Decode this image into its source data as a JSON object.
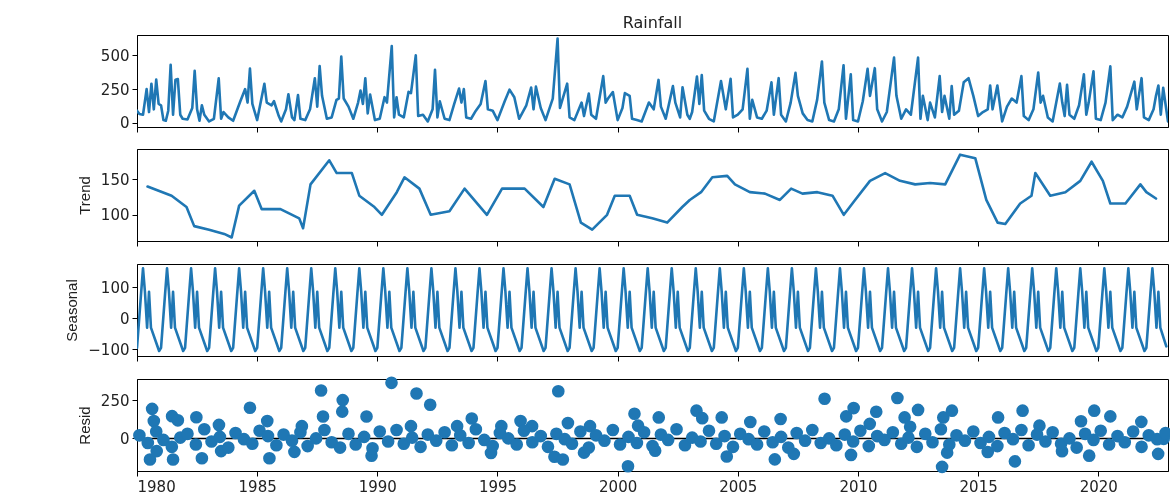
{
  "chart_data": [
    {
      "type": "line",
      "title": "Rainfall",
      "color": "#1f77b4",
      "xlim": [
        1980,
        2022.9
      ],
      "xticks": [
        1980,
        1985,
        1990,
        1995,
        2000,
        2005,
        2010,
        2015,
        2020
      ],
      "ylim": [
        -31,
        651
      ],
      "yticks": [
        0,
        250,
        500
      ],
      "tick_labels": "y",
      "x": [
        1980.0,
        1980.1,
        1980.25,
        1980.4,
        1980.5,
        1980.6,
        1980.7,
        1980.8,
        1980.9,
        1981.0,
        1981.1,
        1981.2,
        1981.3,
        1981.4,
        1981.5,
        1981.6,
        1981.7,
        1981.8,
        1981.9,
        1982.1,
        1982.3,
        1982.4,
        1982.5,
        1982.6,
        1982.7,
        1982.8,
        1983.0,
        1983.2,
        1983.4,
        1983.5,
        1983.6,
        1983.8,
        1984.0,
        1984.3,
        1984.5,
        1984.6,
        1984.7,
        1984.8,
        1985.0,
        1985.3,
        1985.4,
        1985.6,
        1985.7,
        1985.9,
        1986.0,
        1986.2,
        1986.3,
        1986.45,
        1986.55,
        1986.7,
        1986.8,
        1987.0,
        1987.2,
        1987.4,
        1987.5,
        1987.6,
        1987.7,
        1987.9,
        1988.1,
        1988.3,
        1988.4,
        1988.5,
        1988.6,
        1988.8,
        1989.0,
        1989.2,
        1989.3,
        1989.4,
        1989.5,
        1989.6,
        1989.7,
        1989.9,
        1990.1,
        1990.3,
        1990.4,
        1990.6,
        1990.7,
        1990.8,
        1990.9,
        1991.1,
        1991.3,
        1991.4,
        1991.6,
        1991.7,
        1991.9,
        1992.1,
        1992.3,
        1992.4,
        1992.5,
        1992.6,
        1992.8,
        1993.0,
        1993.2,
        1993.4,
        1993.5,
        1993.6,
        1993.7,
        1993.9,
        1994.1,
        1994.3,
        1994.5,
        1994.6,
        1994.8,
        1995.0,
        1995.3,
        1995.5,
        1995.7,
        1995.9,
        1996.2,
        1996.4,
        1996.5,
        1996.6,
        1996.8,
        1997.0,
        1997.3,
        1997.5,
        1997.6,
        1997.9,
        1998.0,
        1998.2,
        1998.5,
        1998.6,
        1998.8,
        1998.9,
        1999.1,
        1999.4,
        1999.5,
        1999.6,
        1999.8,
        2000.0,
        2000.2,
        2000.3,
        2000.5,
        2000.6,
        2000.8,
        2001.0,
        2001.3,
        2001.5,
        2001.7,
        2001.8,
        2002.0,
        2002.3,
        2002.4,
        2002.6,
        2002.7,
        2002.9,
        2003.0,
        2003.1,
        2003.3,
        2003.4,
        2003.5,
        2003.6,
        2003.8,
        2004.0,
        2004.3,
        2004.5,
        2004.7,
        2004.8,
        2005.0,
        2005.2,
        2005.4,
        2005.5,
        2005.6,
        2005.8,
        2006.0,
        2006.2,
        2006.4,
        2006.5,
        2006.7,
        2006.8,
        2007.0,
        2007.2,
        2007.4,
        2007.5,
        2007.7,
        2007.9,
        2008.1,
        2008.3,
        2008.5,
        2008.6,
        2008.8,
        2009.0,
        2009.2,
        2009.4,
        2009.5,
        2009.7,
        2009.8,
        2010.0,
        2010.2,
        2010.4,
        2010.5,
        2010.7,
        2010.8,
        2011.0,
        2011.2,
        2011.5,
        2011.6,
        2011.8,
        2012.0,
        2012.2,
        2012.5,
        2012.6,
        2012.7,
        2012.9,
        2013.0,
        2013.2,
        2013.4,
        2013.5,
        2013.6,
        2013.8,
        2013.9,
        2014.0,
        2014.2,
        2014.4,
        2014.6,
        2014.8,
        2015.0,
        2015.2,
        2015.4,
        2015.5,
        2015.6,
        2015.8,
        2016.0,
        2016.2,
        2016.4,
        2016.6,
        2016.8,
        2016.9,
        2017.1,
        2017.3,
        2017.5,
        2017.6,
        2017.7,
        2017.9,
        2018.1,
        2018.4,
        2018.5,
        2018.6,
        2018.7,
        2018.8,
        2019.0,
        2019.2,
        2019.4,
        2019.5,
        2019.6,
        2019.8,
        2019.9,
        2020.1,
        2020.3,
        2020.5,
        2020.6,
        2020.8,
        2021.0,
        2021.2,
        2021.5,
        2021.6,
        2021.8,
        2021.9,
        2022.1,
        2022.3,
        2022.4,
        2022.5,
        2022.6,
        2022.7,
        2022.9
      ],
      "values": [
        90,
        65,
        60,
        250,
        80,
        290,
        100,
        320,
        140,
        130,
        20,
        15,
        90,
        430,
        60,
        320,
        324,
        60,
        30,
        25,
        110,
        385,
        100,
        15,
        130,
        60,
        10,
        30,
        330,
        30,
        80,
        40,
        15,
        160,
        250,
        150,
        402,
        140,
        20,
        290,
        150,
        130,
        160,
        50,
        10,
        100,
        212,
        40,
        20,
        206,
        30,
        20,
        100,
        330,
        120,
        421,
        200,
        30,
        40,
        170,
        180,
        491,
        180,
        120,
        30,
        150,
        240,
        140,
        330,
        70,
        210,
        20,
        30,
        190,
        150,
        569,
        40,
        190,
        60,
        40,
        230,
        220,
        500,
        50,
        60,
        10,
        100,
        393,
        40,
        160,
        30,
        20,
        140,
        254,
        150,
        250,
        40,
        30,
        90,
        140,
        310,
        100,
        90,
        20,
        160,
        246,
        190,
        30,
        130,
        262,
        100,
        268,
        110,
        20,
        180,
        625,
        110,
        290,
        40,
        20,
        150,
        50,
        217,
        60,
        30,
        346,
        150,
        180,
        228,
        20,
        110,
        220,
        200,
        30,
        20,
        10,
        150,
        100,
        318,
        120,
        30,
        272,
        150,
        40,
        264,
        60,
        30,
        80,
        343,
        140,
        354,
        90,
        30,
        10,
        310,
        100,
        326,
        40,
        60,
        100,
        400,
        30,
        170,
        40,
        30,
        90,
        300,
        60,
        331,
        60,
        10,
        150,
        370,
        200,
        70,
        20,
        10,
        170,
        455,
        150,
        20,
        10,
        100,
        427,
        30,
        359,
        20,
        10,
        160,
        400,
        200,
        405,
        100,
        10,
        80,
        483,
        200,
        30,
        100,
        60,
        483,
        30,
        200,
        20,
        150,
        40,
        346,
        80,
        200,
        30,
        273,
        60,
        90,
        300,
        331,
        200,
        50,
        80,
        100,
        277,
        100,
        277,
        10,
        120,
        180,
        150,
        346,
        50,
        20,
        100,
        373,
        150,
        200,
        40,
        10,
        291,
        150,
        50,
        282,
        60,
        30,
        130,
        359,
        60,
        150,
        382,
        30,
        20,
        150,
        419,
        20,
        60,
        40,
        120,
        305,
        100,
        331,
        40,
        20,
        100,
        200,
        277,
        60,
        260,
        10
      ]
    },
    {
      "type": "line",
      "ylabel": "Trend",
      "color": "#1f77b4",
      "xlim": [
        1980,
        2022.9
      ],
      "xticks": [
        1980,
        1985,
        1990,
        1995,
        2000,
        2005,
        2010,
        2015,
        2020
      ],
      "ylim": [
        63,
        193
      ],
      "yticks": [
        100,
        150
      ],
      "tick_labels": "y",
      "x": [
        1980.44,
        1981.44,
        1982.06,
        1982.38,
        1983.0,
        1983.63,
        1983.94,
        1984.25,
        1984.88,
        1985.19,
        1985.97,
        1986.75,
        1986.91,
        1987.22,
        1988.0,
        1988.31,
        1988.94,
        1989.25,
        1989.88,
        1990.19,
        1990.81,
        1991.13,
        1991.75,
        1992.22,
        1993.0,
        1993.63,
        1994.56,
        1995.19,
        1996.13,
        1996.91,
        1997.38,
        1998.0,
        1998.47,
        1998.94,
        1999.56,
        1999.88,
        2000.5,
        2000.81,
        2001.44,
        2002.06,
        2002.69,
        2003.0,
        2003.47,
        2003.94,
        2004.56,
        2004.88,
        2005.5,
        2006.13,
        2006.75,
        2007.22,
        2007.69,
        2008.31,
        2008.94,
        2009.41,
        2009.88,
        2010.5,
        2011.13,
        2011.75,
        2012.38,
        2013.0,
        2013.63,
        2014.25,
        2014.88,
        2015.34,
        2015.81,
        2016.13,
        2016.75,
        2017.22,
        2017.38,
        2018.0,
        2018.63,
        2019.25,
        2019.72,
        2020.19,
        2020.5,
        2021.13,
        2021.75,
        2022.0,
        2022.4
      ],
      "values": [
        140,
        127,
        111,
        84,
        79,
        73,
        68,
        113,
        134,
        108,
        108,
        95,
        81,
        143,
        177,
        159,
        159,
        127,
        111,
        100,
        132,
        153,
        137,
        100,
        105,
        137,
        100,
        137,
        137,
        111,
        151,
        143,
        89,
        79,
        100,
        127,
        127,
        100,
        95,
        89,
        111,
        121,
        132,
        153,
        155,
        143,
        132,
        130,
        121,
        137,
        130,
        132,
        127,
        100,
        121,
        148,
        159,
        148,
        143,
        145,
        143,
        185,
        180,
        121,
        89,
        87,
        116,
        127,
        159,
        127,
        132,
        148,
        175,
        148,
        116,
        116,
        143,
        132,
        123
      ]
    },
    {
      "type": "line",
      "ylabel": "Seasonal",
      "color": "#1f77b4",
      "xlim": [
        1980,
        2022.9
      ],
      "xticks": [
        1980,
        1985,
        1990,
        1995,
        2000,
        2005,
        2010,
        2015,
        2020
      ],
      "ylim": [
        -121,
        174
      ],
      "yticks": [
        -100,
        0,
        100
      ],
      "tick_labels": "y",
      "x": [
        1980,
        1980.17,
        1980.25,
        1980.33,
        1980.42,
        1980.5,
        1980.58,
        1980.92,
        1981,
        1981.17,
        1981.25,
        1981.33,
        1981.42,
        1981.5,
        1981.58,
        1981.92,
        1982,
        1982.17,
        1982.25,
        1982.33,
        1982.42,
        1982.5,
        1982.58,
        1982.92,
        1983,
        1983.17,
        1983.25,
        1983.33,
        1983.42,
        1983.5,
        1983.58,
        1983.92,
        1984,
        1984.17,
        1984.25,
        1984.33,
        1984.42,
        1984.5,
        1984.58,
        1984.92,
        1985,
        1985.17,
        1985.25,
        1985.33,
        1985.42,
        1985.5,
        1985.58,
        1985.92,
        1986,
        1986.17,
        1986.25,
        1986.33,
        1986.42,
        1986.5,
        1986.58,
        1986.92,
        1987,
        1987.17,
        1987.25,
        1987.33,
        1987.42,
        1987.5,
        1987.58,
        1987.92,
        1988,
        1988.17,
        1988.25,
        1988.33,
        1988.42,
        1988.5,
        1988.58,
        1988.92,
        1989,
        1989.17,
        1989.25,
        1989.33,
        1989.42,
        1989.5,
        1989.58,
        1989.92,
        1990,
        1990.17,
        1990.25,
        1990.33,
        1990.42,
        1990.5,
        1990.58,
        1990.92,
        1991,
        1991.17,
        1991.25,
        1991.33,
        1991.42,
        1991.5,
        1991.58,
        1991.92,
        1992,
        1992.17,
        1992.25,
        1992.33,
        1992.42,
        1992.5,
        1992.58,
        1992.92,
        1993,
        1993.17,
        1993.25,
        1993.33,
        1993.42,
        1993.5,
        1993.58,
        1993.92,
        1994,
        1994.17,
        1994.25,
        1994.33,
        1994.42,
        1994.5,
        1994.58,
        1994.92,
        1995,
        1995.17,
        1995.25,
        1995.33,
        1995.42,
        1995.5,
        1995.58,
        1995.92,
        1996,
        1996.17,
        1996.25,
        1996.33,
        1996.42,
        1996.5,
        1996.58,
        1996.92,
        1997,
        1997.17,
        1997.25,
        1997.33,
        1997.42,
        1997.5,
        1997.58,
        1997.92,
        1998,
        1998.17,
        1998.25,
        1998.33,
        1998.42,
        1998.5,
        1998.58,
        1998.92,
        1999,
        1999.17,
        1999.25,
        1999.33,
        1999.42,
        1999.5,
        1999.58,
        1999.92,
        2000,
        2000.17,
        2000.25,
        2000.33,
        2000.42,
        2000.5,
        2000.58,
        2000.92,
        2001,
        2001.17,
        2001.25,
        2001.33,
        2001.42,
        2001.5,
        2001.58,
        2001.92,
        2002,
        2002.17,
        2002.25,
        2002.33,
        2002.42,
        2002.5,
        2002.58,
        2002.92,
        2003,
        2003.17,
        2003.25,
        2003.33,
        2003.42,
        2003.5,
        2003.58,
        2003.92,
        2004,
        2004.17,
        2004.25,
        2004.33,
        2004.42,
        2004.5,
        2004.58,
        2004.92,
        2005,
        2005.17,
        2005.25,
        2005.33,
        2005.42,
        2005.5,
        2005.58,
        2005.92,
        2006,
        2006.17,
        2006.25,
        2006.33,
        2006.42,
        2006.5,
        2006.58,
        2006.92,
        2007,
        2007.17,
        2007.25,
        2007.33,
        2007.42,
        2007.5,
        2007.58,
        2007.92,
        2008,
        2008.17,
        2008.25,
        2008.33,
        2008.42,
        2008.5,
        2008.58,
        2008.92,
        2009,
        2009.17,
        2009.25,
        2009.33,
        2009.42,
        2009.5,
        2009.58,
        2009.92,
        2010,
        2010.17,
        2010.25,
        2010.33,
        2010.42,
        2010.5,
        2010.58,
        2010.92,
        2011,
        2011.17,
        2011.25,
        2011.33,
        2011.42,
        2011.5,
        2011.58,
        2011.92,
        2012,
        2012.17,
        2012.25,
        2012.33,
        2012.42,
        2012.5,
        2012.58,
        2012.92,
        2013,
        2013.17,
        2013.25,
        2013.33,
        2013.42,
        2013.5,
        2013.58,
        2013.92,
        2014,
        2014.17,
        2014.25,
        2014.33,
        2014.42,
        2014.5,
        2014.58,
        2014.92,
        2015,
        2015.17,
        2015.25,
        2015.33,
        2015.42,
        2015.5,
        2015.58,
        2015.92,
        2016,
        2016.17,
        2016.25,
        2016.33,
        2016.42,
        2016.5,
        2016.58,
        2016.92,
        2017,
        2017.17,
        2017.25,
        2017.33,
        2017.42,
        2017.5,
        2017.58,
        2017.92,
        2018,
        2018.17,
        2018.25,
        2018.33,
        2018.42,
        2018.5,
        2018.58,
        2018.92,
        2019,
        2019.17,
        2019.25,
        2019.33,
        2019.42,
        2019.5,
        2019.58,
        2019.92,
        2020,
        2020.17,
        2020.25,
        2020.33,
        2020.42,
        2020.5,
        2020.58,
        2020.92,
        2021,
        2021.17,
        2021.25,
        2021.33,
        2021.42,
        2021.5,
        2021.58,
        2021.92,
        2022,
        2022.17,
        2022.25,
        2022.33,
        2022.42,
        2022.5,
        2022.58,
        2022.83
      ],
      "values": [
        -95,
        80,
        160,
        85,
        -30,
        85,
        -30,
        -105,
        -95,
        80,
        160,
        85,
        -30,
        85,
        -30,
        -105,
        -95,
        80,
        160,
        85,
        -30,
        85,
        -30,
        -105,
        -95,
        80,
        160,
        85,
        -30,
        85,
        -30,
        -105,
        -95,
        80,
        160,
        85,
        -30,
        85,
        -30,
        -105,
        -95,
        80,
        160,
        85,
        -30,
        85,
        -30,
        -105,
        -95,
        80,
        160,
        85,
        -30,
        85,
        -30,
        -105,
        -95,
        80,
        160,
        85,
        -30,
        85,
        -30,
        -105,
        -95,
        80,
        160,
        85,
        -30,
        85,
        -30,
        -105,
        -95,
        80,
        160,
        85,
        -30,
        85,
        -30,
        -105,
        -95,
        80,
        160,
        85,
        -30,
        85,
        -30,
        -105,
        -95,
        80,
        160,
        85,
        -30,
        85,
        -30,
        -105,
        -95,
        80,
        160,
        85,
        -30,
        85,
        -30,
        -105,
        -95,
        80,
        160,
        85,
        -30,
        85,
        -30,
        -105,
        -95,
        80,
        160,
        85,
        -30,
        85,
        -30,
        -105,
        -95,
        80,
        160,
        85,
        -30,
        85,
        -30,
        -105,
        -95,
        80,
        160,
        85,
        -30,
        85,
        -30,
        -105,
        -95,
        80,
        160,
        85,
        -30,
        85,
        -30,
        -105,
        -95,
        80,
        160,
        85,
        -30,
        85,
        -30,
        -105,
        -95,
        80,
        160,
        85,
        -30,
        85,
        -30,
        -105,
        -95,
        80,
        160,
        85,
        -30,
        85,
        -30,
        -105,
        -95,
        80,
        160,
        85,
        -30,
        85,
        -30,
        -105,
        -95,
        80,
        160,
        85,
        -30,
        85,
        -30,
        -105,
        -95,
        80,
        160,
        85,
        -30,
        85,
        -30,
        -105,
        -95,
        80,
        160,
        85,
        -30,
        85,
        -30,
        -105,
        -95,
        80,
        160,
        85,
        -30,
        85,
        -30,
        -105,
        -95,
        80,
        160,
        85,
        -30,
        85,
        -30,
        -105,
        -95,
        80,
        160,
        85,
        -30,
        85,
        -30,
        -105,
        -95,
        80,
        160,
        85,
        -30,
        85,
        -30,
        -105,
        -95,
        80,
        160,
        85,
        -30,
        85,
        -30,
        -105,
        -95,
        80,
        160,
        85,
        -30,
        85,
        -30,
        -105,
        -95,
        80,
        160,
        85,
        -30,
        85,
        -30,
        -105,
        -95,
        80,
        160,
        85,
        -30,
        85,
        -30,
        -105,
        -95,
        80,
        160,
        85,
        -30,
        85,
        -30,
        -105,
        -95,
        80,
        160,
        85,
        -30,
        85,
        -30,
        -105,
        -95,
        80,
        160,
        85,
        -30,
        85,
        -30,
        -105,
        -95,
        80,
        160,
        85,
        -30,
        85,
        -30,
        -105,
        -95,
        80,
        160,
        85,
        -30,
        85,
        -30,
        -105,
        -95,
        80,
        160,
        85,
        -30,
        85,
        -30,
        -105,
        -95,
        80,
        160,
        85,
        -30,
        85,
        -30,
        -105,
        -95,
        80,
        160,
        85,
        -30,
        85,
        -30,
        -105,
        -95,
        80,
        160,
        85,
        -30,
        85,
        -30,
        -105,
        -95,
        80,
        160,
        85,
        -30,
        85,
        -30,
        -90
      ]
    },
    {
      "type": "scatter",
      "ylabel": "Resid",
      "color": "#1f77b4",
      "marker": "circle",
      "xlim": [
        1980,
        2022.9
      ],
      "xticks": [
        1980,
        1985,
        1990,
        1995,
        2000,
        2005,
        2010,
        2015,
        2020
      ],
      "ylim": [
        -213,
        388
      ],
      "yticks": [
        0,
        250
      ],
      "ref_lines": [
        {
          "axis": "y",
          "value": 0,
          "color": "#000000"
        }
      ],
      "x": [
        1980.63,
        1980.7,
        1980.54,
        1980.82,
        1981.46,
        1981.7,
        1981.5,
        1982.47,
        1982.7,
        1983.41,
        1983.5,
        1984.7,
        1985.42,
        1985.51,
        1986.55,
        1986.86,
        1987.66,
        1987.74,
        1988.56,
        1988.54,
        1989.55,
        1989.76,
        1990.59,
        1991.4,
        1991.63,
        1992.2,
        1993.32,
        1993.93,
        1994.73,
        1995.16,
        1995.96,
        1996.44,
        1997.53,
        1997.37,
        1997.72,
        1997.93,
        1998.6,
        1998.85,
        2000.43,
        2000.7,
        2000.85,
        2001.71,
        2001.56,
        2003.28,
        2003.52,
        2004.33,
        2004.54,
        2005.52,
        2006.54,
        2006.78,
        2007.33,
        2008.61,
        2009.51,
        2009.82,
        2009.71,
        2010.76,
        2010.49,
        2011.64,
        2011.94,
        2012.17,
        2012.5,
        2013.5,
        2013.55,
        2013.91,
        2013.71,
        2015.4,
        2015.83,
        2016.53,
        2016.85,
        2017.55,
        2018.49,
        2019.28,
        2019.83,
        2019.62,
        2020.5,
        2021.79,
        2022.49,
        2022.72,
        1980.1,
        1980.45,
        1980.8,
        1981.1,
        1981.45,
        1981.8,
        1982.1,
        1982.45,
        1982.8,
        1983.1,
        1983.45,
        1983.8,
        1984.1,
        1984.45,
        1984.8,
        1985.1,
        1985.45,
        1985.8,
        1986.1,
        1986.45,
        1986.8,
        1987.1,
        1987.45,
        1987.8,
        1988.1,
        1988.45,
        1988.8,
        1989.1,
        1989.45,
        1989.8,
        1990.1,
        1990.45,
        1990.8,
        1991.1,
        1991.45,
        1991.8,
        1992.1,
        1992.45,
        1992.8,
        1993.1,
        1993.45,
        1993.8,
        1994.1,
        1994.45,
        1994.8,
        1995.1,
        1995.45,
        1995.8,
        1996.1,
        1996.45,
        1996.8,
        1997.1,
        1997.45,
        1997.8,
        1998.1,
        1998.45,
        1998.8,
        1999.1,
        1999.45,
        1999.8,
        2000.1,
        2000.45,
        2000.8,
        2001.1,
        2001.45,
        2001.8,
        2002.1,
        2002.45,
        2002.8,
        2003.1,
        2003.45,
        2003.8,
        2004.1,
        2004.45,
        2004.8,
        2005.1,
        2005.45,
        2005.8,
        2006.1,
        2006.45,
        2006.8,
        2007.1,
        2007.45,
        2007.8,
        2008.1,
        2008.45,
        2008.8,
        2009.1,
        2009.45,
        2009.8,
        2010.1,
        2010.45,
        2010.8,
        2011.1,
        2011.45,
        2011.8,
        2012.1,
        2012.45,
        2012.8,
        2013.1,
        2013.45,
        2013.8,
        2014.1,
        2014.45,
        2014.8,
        2015.1,
        2015.45,
        2015.8,
        2016.1,
        2016.45,
        2016.8,
        2017.1,
        2017.45,
        2017.8,
        2018.1,
        2018.45,
        2018.8,
        2019.1,
        2019.45,
        2019.8,
        2020.1,
        2020.45,
        2020.8,
        2021.1,
        2021.45,
        2021.8,
        2022.1,
        2022.45,
        2022.8
      ],
      "values": [
        193,
        113,
        -138,
        -83,
        145,
        118,
        -138,
        138,
        -130,
        88,
        -83,
        200,
        113,
        -130,
        -88,
        80,
        313,
        143,
        250,
        175,
        143,
        -113,
        363,
        80,
        293,
        220,
        80,
        130,
        -95,
        80,
        113,
        80,
        308,
        -120,
        -138,
        100,
        -93,
        80,
        -182,
        161,
        83,
        137,
        -81,
        181,
        132,
        137,
        -118,
        107,
        -137,
        127,
        -101,
        259,
        144,
        198,
        -108,
        174,
        95,
        264,
        137,
        76,
        186,
        -186,
        137,
        181,
        -93,
        -89,
        137,
        -150,
        181,
        83,
        -84,
        112,
        181,
        -113,
        144,
        108,
        -101,
        -3,
        20,
        -30,
        45,
        -10,
        -55,
        5,
        30,
        -40,
        60,
        -20,
        10,
        -60,
        35,
        -5,
        -35,
        50,
        15,
        -45,
        25,
        -15,
        40,
        -50,
        0,
        55,
        -25,
        -60,
        30,
        -40,
        10,
        -65,
        45,
        -20,
        55,
        -35,
        5,
        -55,
        25,
        -15,
        40,
        -45,
        20,
        -30,
        60,
        -10,
        -50,
        35,
        0,
        -40,
        50,
        -25,
        15,
        -55,
        30,
        -5,
        -35,
        45,
        -60,
        20,
        -15,
        55,
        -40,
        10,
        -30,
        40,
        -50,
        25,
        -10,
        60,
        -45,
        5,
        -20,
        50,
        -35,
        15,
        -55,
        30,
        -5,
        -40,
        45,
        -25,
        10,
        -60,
        35,
        -15,
        55,
        -30,
        0,
        -45,
        25,
        -20,
        50,
        -50,
        15,
        -10,
        40,
        -35,
        5,
        -55,
        30,
        -25,
        60,
        -40,
        20,
        -15,
        45,
        -30,
        10,
        -50,
        35,
        -5,
        55,
        -45,
        25,
        -20,
        40,
        -35,
        0,
        -60,
        30,
        -10,
        50,
        -40,
        15,
        -25,
        45,
        -55,
        20,
        -5,
        35
      ]
    }
  ]
}
